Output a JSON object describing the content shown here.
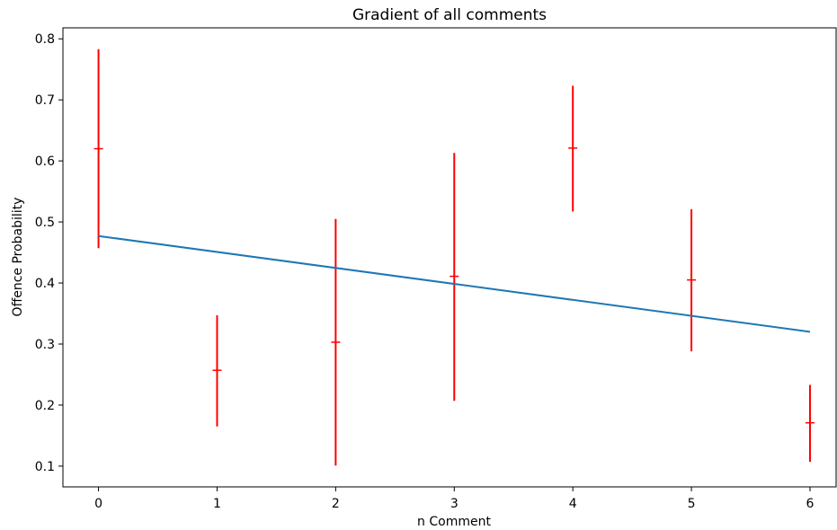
{
  "chart_data": {
    "type": "scatter",
    "title": "Gradient of all comments",
    "xlabel": "n Comment",
    "ylabel": "Offence Probability",
    "xlim": [
      -0.3,
      6.22
    ],
    "ylim": [
      0.066,
      0.818
    ],
    "xticks": [
      "0",
      "1",
      "2",
      "3",
      "4",
      "5",
      "6"
    ],
    "yticks": [
      "0.1",
      "0.2",
      "0.3",
      "0.4",
      "0.5",
      "0.6",
      "0.7",
      "0.8"
    ],
    "grid": false,
    "series": [
      {
        "kind": "errorbar",
        "color": "#ff0000",
        "points": [
          {
            "x": 0,
            "y": 0.62,
            "low": 0.457,
            "high": 0.783
          },
          {
            "x": 1,
            "y": 0.257,
            "low": 0.165,
            "high": 0.347
          },
          {
            "x": 2,
            "y": 0.303,
            "low": 0.101,
            "high": 0.505
          },
          {
            "x": 3,
            "y": 0.411,
            "low": 0.207,
            "high": 0.613
          },
          {
            "x": 4,
            "y": 0.621,
            "low": 0.517,
            "high": 0.723
          },
          {
            "x": 5,
            "y": 0.405,
            "low": 0.288,
            "high": 0.521
          },
          {
            "x": 6,
            "y": 0.171,
            "low": 0.107,
            "high": 0.233
          }
        ]
      },
      {
        "kind": "line",
        "color": "#1f77b4",
        "x": [
          0,
          6
        ],
        "y": [
          0.477,
          0.32
        ]
      }
    ]
  }
}
